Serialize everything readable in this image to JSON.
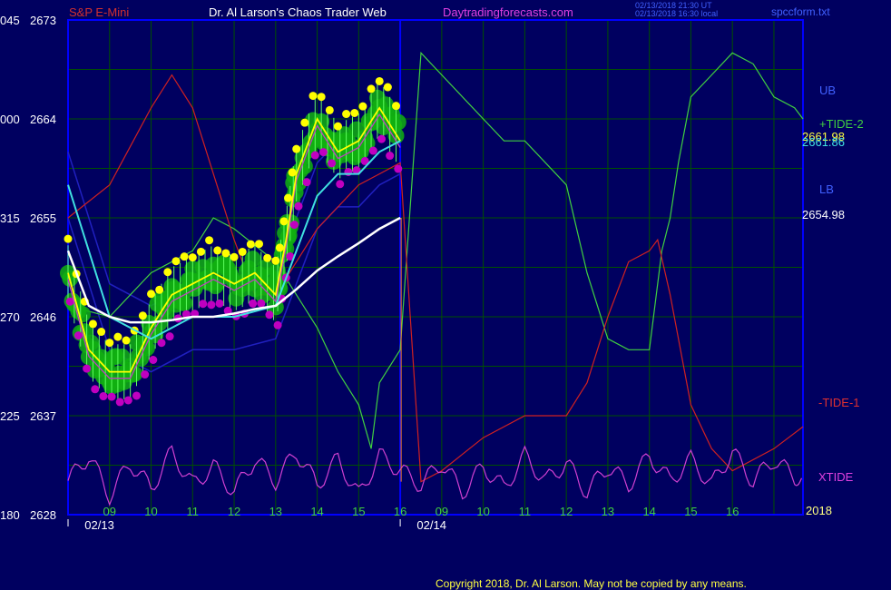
{
  "header": {
    "symbol": "S&P E-Mini",
    "title": "Dr. Al Larson's Chaos Trader Web",
    "site": "Daytradingforecasts.com",
    "stamp_line1": "02/13/2018 21:30 UT",
    "stamp_line2": "02/13/2018 16:30 local",
    "file": "spccform.txt"
  },
  "footer": {
    "copyright": "Copyright 2018, Dr. Al Larson. May not be copied by any means."
  },
  "right_labels": {
    "ub": "UB",
    "tide2": "+TIDE-2",
    "value1": "2661.98",
    "value2": "2661.86",
    "lb": "LB",
    "value3": "2654.98",
    "tide1": "-TIDE-1",
    "xtide": "XTIDE",
    "year": "2018"
  },
  "colors": {
    "background": "#000060",
    "grid": "#005000",
    "frame": "#0000ff",
    "price": "#ffff00",
    "cyan_ma": "#40e0e0",
    "white_ma": "#ffffff",
    "tide2": "#40d040",
    "tide1": "#d02020",
    "xtide": "#d040d0",
    "bands": "#2020c0",
    "bubble": "#10b010",
    "dot_high": "#ffff00",
    "dot_low": "#c000c0"
  },
  "chart_data": {
    "type": "line",
    "title": "S&P E-Mini",
    "y_ticks": [
      {
        "left": "045",
        "price": "2673"
      },
      {
        "left": "000",
        "price": "2664"
      },
      {
        "left": "315",
        "price": "2655"
      },
      {
        "left": "270",
        "price": "2646"
      },
      {
        "left": "225",
        "price": "2637"
      },
      {
        "left": "180",
        "price": "2628"
      }
    ],
    "ylim": [
      2628,
      2673
    ],
    "x_hour_ticks": [
      "09",
      "10",
      "11",
      "12",
      "13",
      "14",
      "15",
      "16",
      "09",
      "10",
      "11",
      "12",
      "13",
      "14",
      "15",
      "16"
    ],
    "dates": [
      "02/13",
      "02/14"
    ],
    "series": [
      {
        "name": "price",
        "x": [
          8.0,
          8.5,
          9.0,
          9.5,
          10.0,
          10.5,
          11.0,
          11.5,
          12.0,
          12.5,
          13.0,
          13.25,
          13.5,
          14.0,
          14.5,
          15.0,
          15.5,
          16.0
        ],
        "y": [
          2650,
          2643,
          2641,
          2641,
          2645,
          2648,
          2649,
          2650,
          2649,
          2650,
          2648,
          2653,
          2659,
          2664,
          2661,
          2662,
          2665,
          2662
        ]
      },
      {
        "name": "cyan_ma",
        "x": [
          8.0,
          9.0,
          10.0,
          11.0,
          12.0,
          13.0,
          13.5,
          14.0,
          14.5,
          15.0,
          15.5,
          16.0
        ],
        "y": [
          2658,
          2646,
          2644,
          2646,
          2646,
          2647,
          2652,
          2657,
          2659,
          2659,
          2661,
          2662
        ]
      },
      {
        "name": "white_ma",
        "x": [
          8.0,
          8.5,
          9.0,
          9.5,
          10.0,
          10.5,
          11.0,
          11.5,
          12.0,
          12.5,
          13.0,
          13.5,
          14.0,
          14.5,
          15.0,
          15.5,
          16.0
        ],
        "y": [
          2652,
          2647,
          2646,
          2645.5,
          2645.5,
          2645.7,
          2646,
          2646,
          2646.3,
          2646.7,
          2647,
          2648.5,
          2650.2,
          2651.5,
          2652.7,
          2654,
          2655
        ]
      },
      {
        "name": "+TIDE-2",
        "x": [
          8.0,
          9.0,
          10.0,
          11.0,
          11.5,
          12.0,
          13.0,
          13.5,
          14.0,
          14.5,
          15.0,
          15.3,
          15.5,
          16.0,
          16.5,
          17.0,
          18.0,
          18.5,
          19.0,
          20.0,
          20.5,
          21.0,
          21.5,
          22.0,
          22.3,
          22.5,
          22.7,
          23.0,
          23.5,
          24.0,
          24.5,
          25.0,
          25.5,
          25.7
        ],
        "y": [
          2647,
          2646,
          2650,
          2652,
          2655,
          2654,
          2651,
          2648,
          2645,
          2641,
          2638,
          2634,
          2640,
          2643,
          2670,
          2668,
          2664,
          2662,
          2662,
          2658,
          2650,
          2644,
          2643,
          2643,
          2652,
          2655,
          2660,
          2666,
          2668,
          2670,
          2669,
          2666,
          2665,
          2664
        ]
      },
      {
        "name": "-TIDE-1",
        "x": [
          8.0,
          9.0,
          10.0,
          10.5,
          11.0,
          12.0,
          12.5,
          13.0,
          14.0,
          14.5,
          15.0,
          15.5,
          16.0,
          16.5,
          17.0,
          18.0,
          19.0,
          20.0,
          20.5,
          21.0,
          21.5,
          22.0,
          22.2,
          22.5,
          23.0,
          23.5,
          24.0,
          25.0,
          25.7
        ],
        "y": [
          2655,
          2658,
          2665,
          2668,
          2665,
          2653,
          2648,
          2648,
          2654,
          2656,
          2658,
          2659,
          2660,
          2631,
          2632,
          2635,
          2637,
          2637,
          2640,
          2646,
          2651,
          2652,
          2653,
          2648,
          2638,
          2634,
          2632,
          2634,
          2636
        ]
      },
      {
        "name": "XTIDE",
        "x": [
          8,
          8.5,
          9,
          9.5,
          10,
          10.5,
          11,
          11.5,
          12,
          12.5,
          13,
          13.5,
          14,
          14.5,
          15,
          15.5,
          16,
          16.5,
          17,
          17.5,
          18,
          18.5,
          19,
          19.5,
          20,
          20.5,
          21,
          21.5,
          22,
          22.5,
          23,
          23.5,
          24,
          24.5,
          25,
          25.5,
          25.7
        ],
        "y": [
          -0.2,
          0.5,
          -0.6,
          0.3,
          -0.4,
          0.6,
          -0.3,
          0.2,
          -0.5,
          0.4,
          -0.2,
          0.6,
          -0.3,
          0.4,
          -0.6,
          0.5,
          0.1,
          -0.3,
          0.3,
          -0.5,
          0.2,
          -0.4,
          0.5,
          -0.2,
          0.3,
          -0.5,
          0.2,
          -0.3,
          0.5,
          -0.2,
          0.4,
          -0.3,
          0.6,
          -0.2,
          0.4,
          -0.1,
          0.0
        ]
      }
    ],
    "grid": true
  }
}
